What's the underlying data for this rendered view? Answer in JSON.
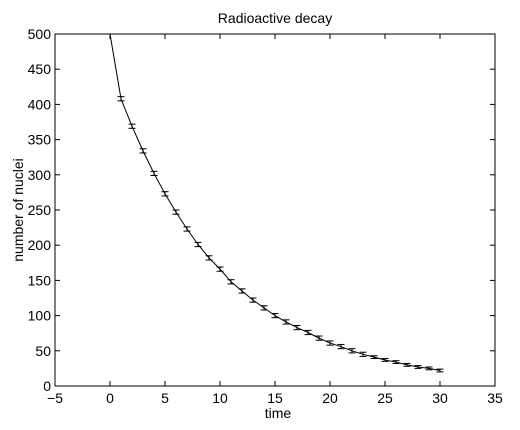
{
  "chart_data": {
    "type": "line",
    "title": "Radioactive decay",
    "xlabel": "time",
    "ylabel": "number of nuclei",
    "xlim": [
      -5,
      35
    ],
    "ylim": [
      0,
      500
    ],
    "xticks": [
      -5,
      0,
      5,
      10,
      15,
      20,
      25,
      30,
      35
    ],
    "yticks": [
      0,
      50,
      100,
      150,
      200,
      250,
      300,
      350,
      400,
      450,
      500
    ],
    "grid": false,
    "series": [
      {
        "x": [
          0,
          1,
          2,
          3,
          4,
          5,
          6,
          7,
          8,
          9,
          10,
          11,
          12,
          13,
          14,
          15,
          16,
          17,
          18,
          19,
          20,
          21,
          22,
          23,
          24,
          25,
          26,
          27,
          28,
          29,
          30
        ],
        "y": [
          500,
          408,
          369,
          334,
          302,
          273,
          247,
          223,
          201,
          182,
          166,
          148,
          135,
          122,
          111,
          100,
          91,
          83,
          76,
          68,
          61,
          56,
          50,
          45,
          41,
          37,
          34,
          30,
          27,
          25,
          22
        ],
        "error_half_width": [
          0,
          3,
          3,
          3,
          3,
          3,
          3,
          3,
          3,
          3,
          3,
          3,
          3,
          3,
          3,
          3,
          3,
          3,
          3,
          3,
          3,
          3,
          3,
          3,
          2,
          2,
          2,
          2,
          2,
          2,
          2
        ],
        "color": "#000000",
        "errorbars": true
      }
    ]
  }
}
